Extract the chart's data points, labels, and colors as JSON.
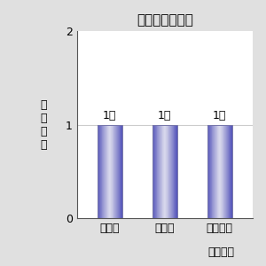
{
  "title": "ジャナル指の向",
  "categories": [
    "着な加",
    "化なし",
    "徐々に少"
  ],
  "values": [
    1,
    1,
    1
  ],
  "bar_labels": [
    "1人",
    "1人",
    "1人"
  ],
  "ylabel": "延べ人数",
  "xlabel": "来年の予",
  "ylim": [
    0,
    2
  ],
  "yticks": [
    0,
    1,
    2
  ],
  "background_color": "#e0e0e0",
  "plot_bg_color": "#ffffff",
  "title_fontsize": 11,
  "label_fontsize": 9,
  "tick_fontsize": 9,
  "bar_width": 0.45
}
